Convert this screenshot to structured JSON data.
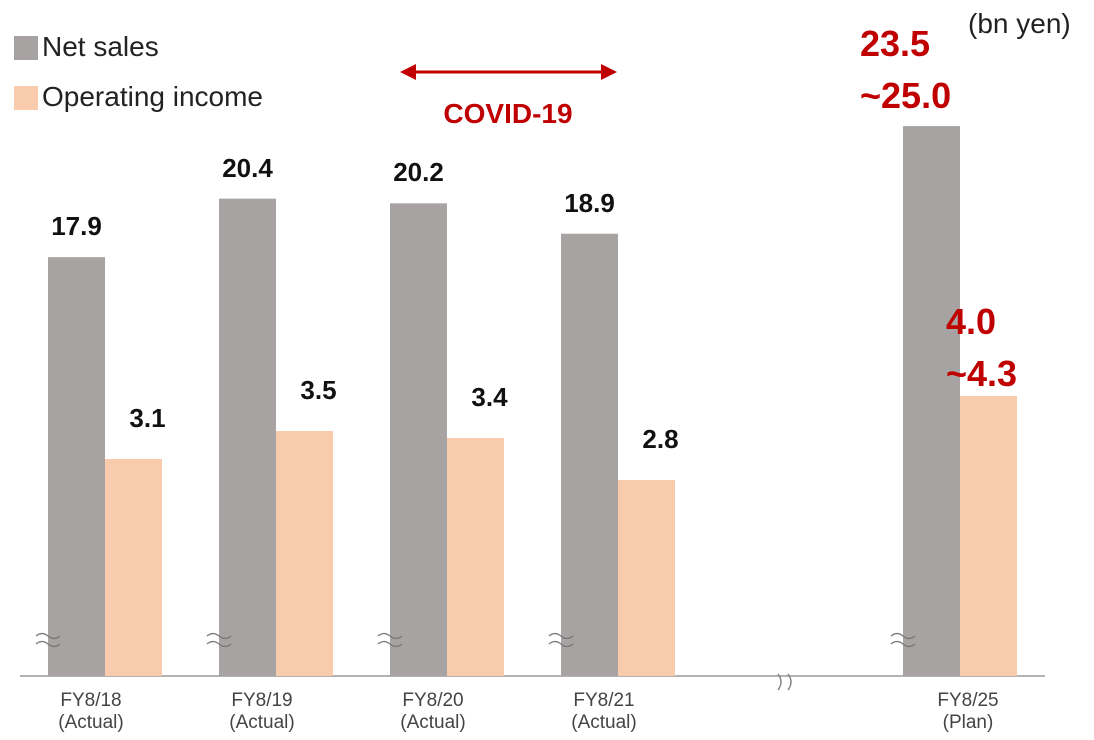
{
  "chart_data": {
    "type": "bar",
    "unit": "(bn yen)",
    "annotation": "COVID-19",
    "highlight_color": "#c00000",
    "categories": [
      "FY8/18\n(Actual)",
      "FY8/19\n(Actual)",
      "FY8/20\n(Actual)",
      "FY8/21\n(Actual)",
      "FY8/25\n(Plan)"
    ],
    "series": [
      {
        "name": "Net sales",
        "color": "#a7a3a2",
        "values": [
          17.9,
          20.4,
          20.2,
          18.9,
          {
            "low": 23.5,
            "high": 25.0,
            "label": "23.5\n~25.0"
          }
        ]
      },
      {
        "name": "Operating income",
        "color": "#f8cbad",
        "values": [
          3.1,
          3.5,
          3.4,
          2.8,
          {
            "low": 4.0,
            "high": 4.3,
            "label": "4.0\n~4.3"
          }
        ]
      }
    ]
  }
}
